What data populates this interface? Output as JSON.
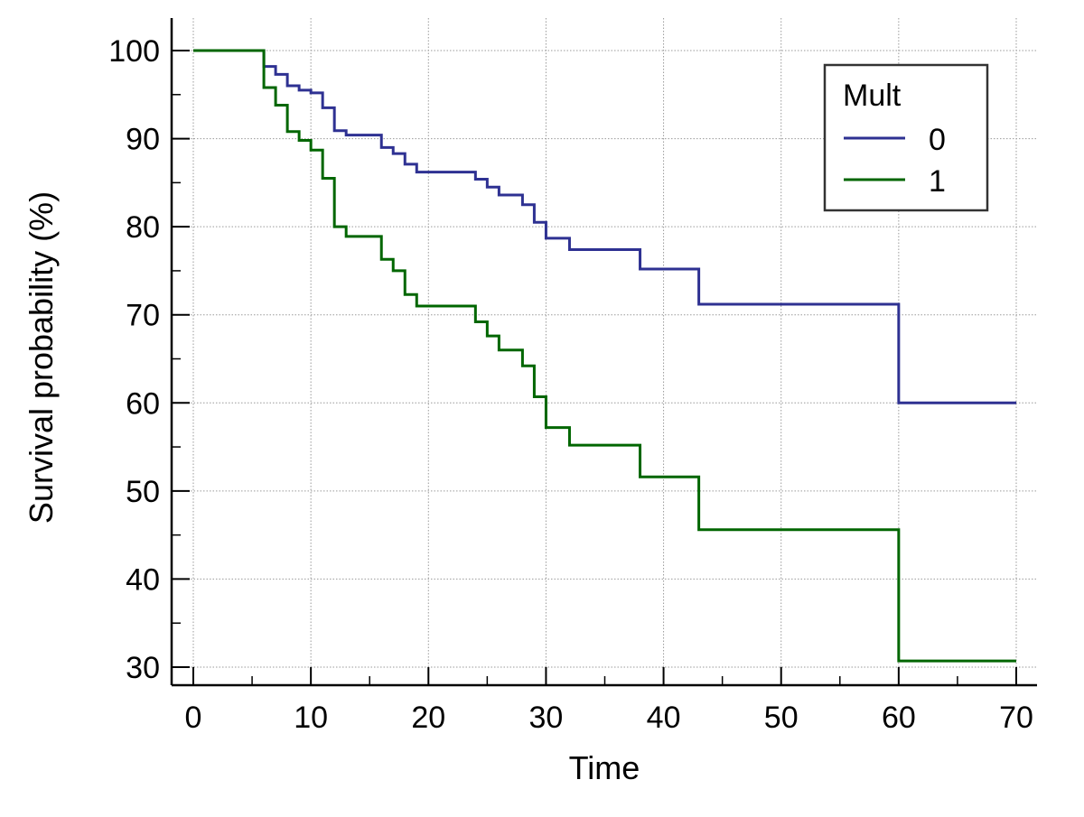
{
  "chart_data": {
    "type": "line",
    "title": "",
    "xlabel": "Time",
    "ylabel": "Survival probability (%)",
    "xlim": [
      0,
      70
    ],
    "ylim": [
      30,
      100
    ],
    "x_ticks": [
      "0",
      "10",
      "20",
      "30",
      "40",
      "50",
      "60",
      "70"
    ],
    "y_ticks": [
      "30",
      "40",
      "50",
      "60",
      "70",
      "80",
      "90",
      "100"
    ],
    "grid": true,
    "step": true,
    "legend": {
      "title": "Mult",
      "position": "top-right"
    },
    "series": [
      {
        "name": "0",
        "color": "#2e3192",
        "points": [
          [
            0,
            100
          ],
          [
            6,
            98.2
          ],
          [
            7,
            97.3
          ],
          [
            8,
            96.0
          ],
          [
            9,
            95.5
          ],
          [
            10,
            95.2
          ],
          [
            11,
            93.5
          ],
          [
            12,
            90.9
          ],
          [
            13,
            90.4
          ],
          [
            16,
            89.0
          ],
          [
            17,
            88.3
          ],
          [
            18,
            87.1
          ],
          [
            19,
            86.2
          ],
          [
            24,
            85.4
          ],
          [
            25,
            84.5
          ],
          [
            26,
            83.6
          ],
          [
            28,
            82.5
          ],
          [
            29,
            80.5
          ],
          [
            30,
            78.7
          ],
          [
            32,
            77.4
          ],
          [
            38,
            75.2
          ],
          [
            43,
            71.2
          ],
          [
            60,
            60.0
          ],
          [
            70,
            60.0
          ]
        ]
      },
      {
        "name": "1",
        "color": "#006600",
        "points": [
          [
            0,
            100
          ],
          [
            6,
            95.8
          ],
          [
            7,
            93.8
          ],
          [
            8,
            90.8
          ],
          [
            9,
            89.8
          ],
          [
            10,
            88.7
          ],
          [
            11,
            85.5
          ],
          [
            12,
            80.0
          ],
          [
            13,
            78.9
          ],
          [
            16,
            76.3
          ],
          [
            17,
            75.0
          ],
          [
            18,
            72.3
          ],
          [
            19,
            71.0
          ],
          [
            24,
            69.2
          ],
          [
            25,
            67.6
          ],
          [
            26,
            66.0
          ],
          [
            28,
            64.2
          ],
          [
            29,
            60.7
          ],
          [
            30,
            57.2
          ],
          [
            32,
            55.2
          ],
          [
            38,
            51.6
          ],
          [
            43,
            45.6
          ],
          [
            60,
            30.7
          ],
          [
            70,
            30.7
          ]
        ]
      }
    ]
  }
}
